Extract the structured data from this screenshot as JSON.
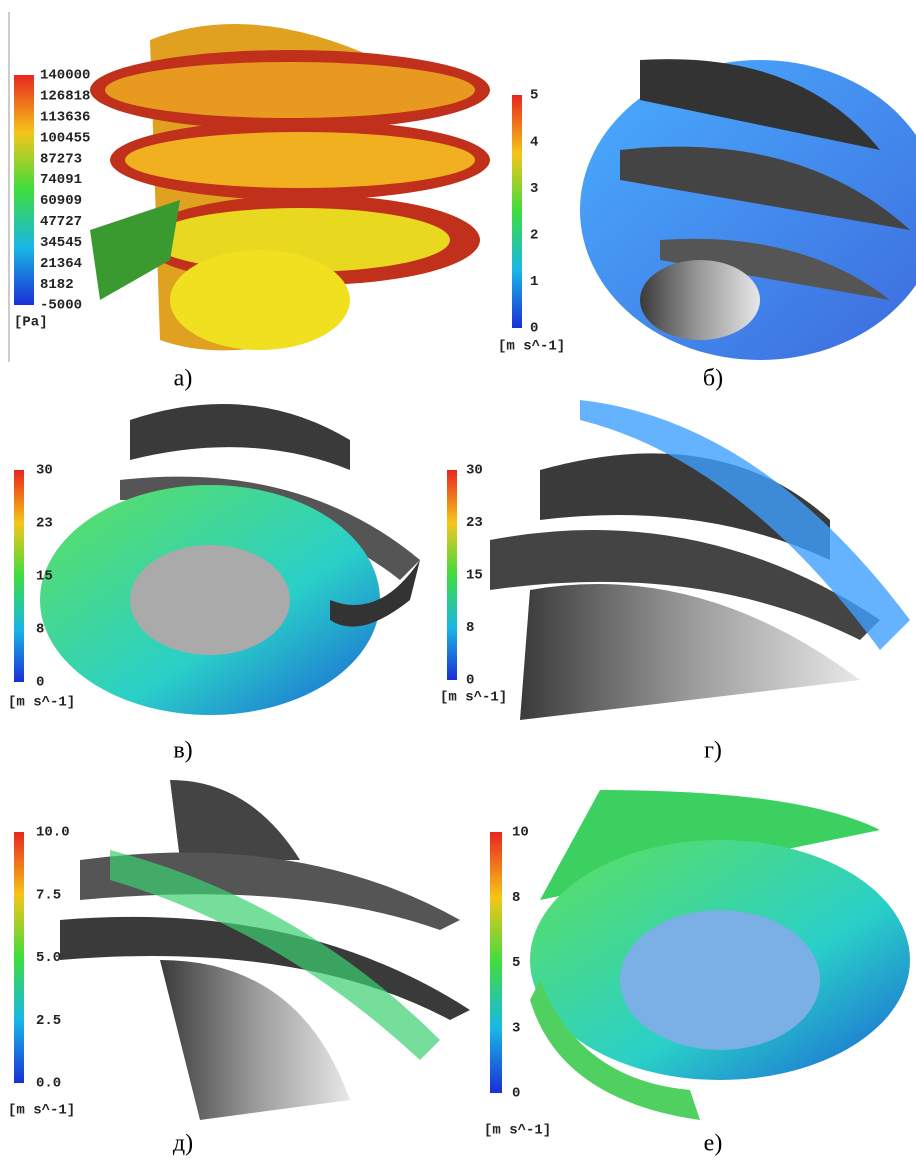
{
  "panels": [
    {
      "caption": "а)",
      "colorbar": {
        "ticks": [
          "140000",
          "126818",
          "113636",
          "100455",
          "87273",
          "74091",
          "60909",
          "47727",
          "34545",
          "21364",
          "8182",
          "-5000"
        ],
        "unit": "[Pa]"
      }
    },
    {
      "caption": "б)",
      "colorbar": {
        "ticks": [
          "5",
          "4",
          "3",
          "2",
          "1",
          "0"
        ],
        "unit": "[m s^-1]"
      }
    },
    {
      "caption": "в)",
      "colorbar": {
        "ticks": [
          "30",
          "23",
          "15",
          "8",
          "0"
        ],
        "unit": "[m s^-1]"
      }
    },
    {
      "caption": "г)",
      "colorbar": {
        "ticks": [
          "30",
          "23",
          "15",
          "8",
          "0"
        ],
        "unit": "[m s^-1]"
      }
    },
    {
      "caption": "д)",
      "colorbar": {
        "ticks": [
          "10.0",
          "7.5",
          "5.0",
          "2.5",
          "0.0"
        ],
        "unit": "[m s^-1]"
      }
    },
    {
      "caption": "е)",
      "colorbar": {
        "ticks": [
          "10",
          "8",
          "5",
          "3",
          "0"
        ],
        "unit": "[m s^-1]"
      }
    }
  ]
}
